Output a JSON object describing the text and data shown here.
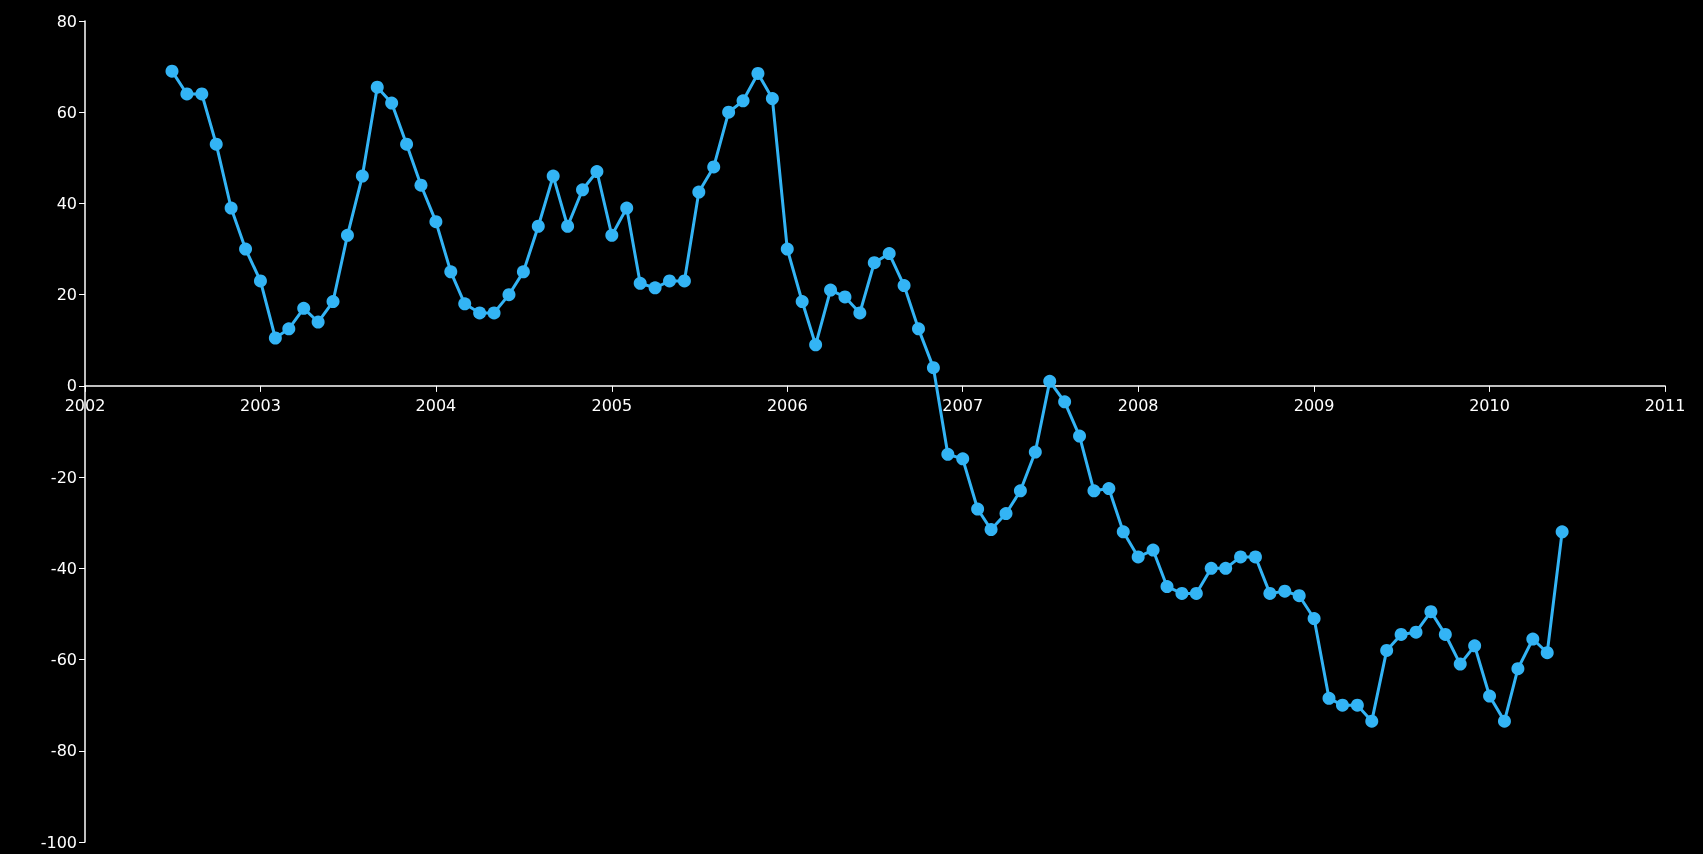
{
  "chart_data": {
    "type": "line",
    "x": [
      "2002-07",
      "2002-08",
      "2002-09",
      "2002-10",
      "2002-11",
      "2002-12",
      "2003-01",
      "2003-02",
      "2003-03",
      "2003-04",
      "2003-05",
      "2003-06",
      "2003-07",
      "2003-08",
      "2003-09",
      "2003-10",
      "2003-11",
      "2003-12",
      "2004-01",
      "2004-02",
      "2004-03",
      "2004-04",
      "2004-05",
      "2004-06",
      "2004-07",
      "2004-08",
      "2004-09",
      "2004-10",
      "2004-11",
      "2004-12",
      "2005-01",
      "2005-02",
      "2005-03",
      "2005-04",
      "2005-05",
      "2005-06",
      "2005-07",
      "2005-08",
      "2005-09",
      "2005-10",
      "2005-11",
      "2005-12",
      "2006-01",
      "2006-02",
      "2006-03",
      "2006-04",
      "2006-05",
      "2006-06",
      "2006-07",
      "2006-08",
      "2006-09",
      "2006-10",
      "2006-11",
      "2006-12",
      "2007-01",
      "2007-02",
      "2007-03",
      "2007-04",
      "2007-05",
      "2007-06",
      "2007-07",
      "2007-08",
      "2007-09",
      "2007-10",
      "2007-11",
      "2007-12",
      "2008-01",
      "2008-02",
      "2008-03",
      "2008-04",
      "2008-05",
      "2008-06",
      "2008-07",
      "2008-08",
      "2008-09",
      "2008-10",
      "2008-11",
      "2008-12",
      "2009-01",
      "2009-02",
      "2009-03",
      "2009-04",
      "2009-05",
      "2009-06",
      "2009-07",
      "2009-08",
      "2009-09",
      "2009-10",
      "2009-11",
      "2009-12",
      "2010-01",
      "2010-02",
      "2010-03",
      "2010-04",
      "2010-05",
      "2010-06"
    ],
    "series": [
      {
        "color": "#33b4f5",
        "values": [
          69,
          64,
          64,
          53,
          39,
          30,
          23,
          10.5,
          12.5,
          17,
          14,
          18.5,
          33,
          46,
          65.5,
          62,
          53,
          44,
          36,
          25,
          18,
          16,
          16,
          20,
          25,
          35,
          46,
          35,
          43,
          47,
          33,
          39,
          22.5,
          21.5,
          23,
          23,
          42.5,
          48,
          60,
          62.5,
          68.5,
          63,
          30,
          18.5,
          9,
          21,
          19.5,
          16,
          27,
          29,
          22,
          12.5,
          4,
          -15,
          -16,
          -27,
          -31.5,
          -28,
          -23,
          -14.5,
          1,
          -3.5,
          -11,
          -23,
          -22.5,
          -32,
          -37.5,
          -36,
          -44,
          -45.5,
          -45.5,
          -40,
          -40,
          -37.5,
          -37.5,
          -45.5,
          -45,
          -46,
          -51,
          -68.5,
          -70,
          -70,
          -73.5,
          -58,
          -54.5,
          -54,
          -49.5,
          -54.5,
          -61,
          -57,
          -68,
          -73.5,
          -62,
          -55.5,
          -58.5,
          -32
        ]
      }
    ],
    "xlim": [
      "2002",
      "2011"
    ],
    "xticks": [
      "2002",
      "2003",
      "2004",
      "2005",
      "2006",
      "2007",
      "2008",
      "2009",
      "2010",
      "2011"
    ],
    "ylim": [
      -100,
      80
    ],
    "yticks": [
      -100,
      -80,
      -60,
      -40,
      -20,
      0,
      20,
      40,
      60,
      80
    ],
    "marker": "circle",
    "line_style": "solid"
  }
}
